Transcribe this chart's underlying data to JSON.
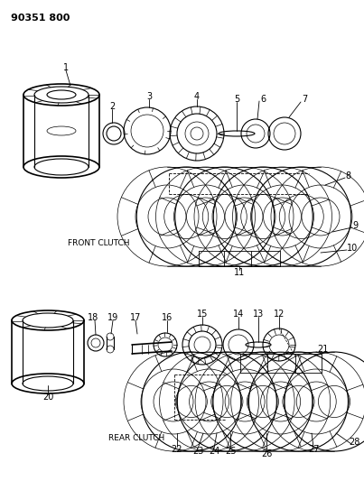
{
  "title": "90351 800",
  "background_color": "#ffffff",
  "line_color": "#1a1a1a",
  "front_clutch_label": "FRONT CLUTCH",
  "rear_clutch_label": "REAR CLUTCH",
  "figsize": [
    4.03,
    5.33
  ],
  "dpi": 100
}
